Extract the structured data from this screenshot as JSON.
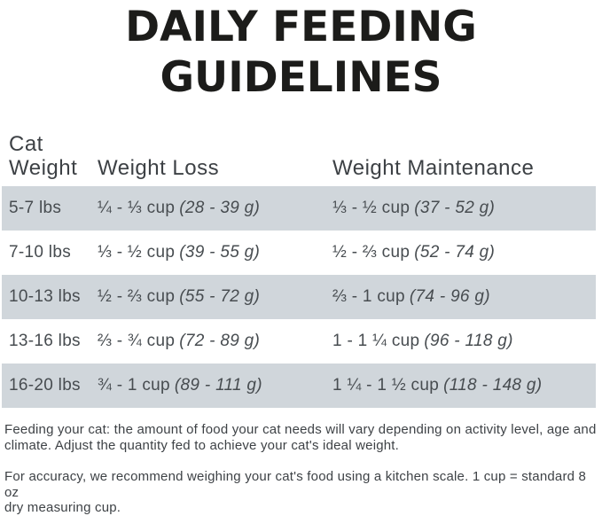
{
  "title": "DAILY FEEDING\nGUIDELINES",
  "colors": {
    "row_shade": "#d0d6db",
    "title_text": "#1c1c1a",
    "body_text": "#474c50"
  },
  "table": {
    "headers": {
      "cat_weight": "Cat\nWeight",
      "weight_loss": "Weight Loss",
      "weight_maintenance": "Weight Maintenance"
    },
    "rows": [
      {
        "weight": "5-7 lbs",
        "loss_cups": "¼ - ⅓ cup",
        "loss_grams": "(28 - 39 g)",
        "maintenance_cups": "⅓ - ½ cup",
        "maintenance_grams": "(37 - 52 g)"
      },
      {
        "weight": "7-10 lbs",
        "loss_cups": "⅓ - ½ cup",
        "loss_grams": "(39 - 55 g)",
        "maintenance_cups": "½ - ⅔ cup",
        "maintenance_grams": "(52 - 74 g)"
      },
      {
        "weight": "10-13 lbs",
        "loss_cups": "½ - ⅔ cup",
        "loss_grams": "(55 - 72 g)",
        "maintenance_cups": "⅔ - 1 cup",
        "maintenance_grams": "(74 - 96 g)"
      },
      {
        "weight": "13-16 lbs",
        "loss_cups": "⅔ - ¾ cup",
        "loss_grams": "(72 - 89 g)",
        "maintenance_cups": "1 - 1 ¼ cup",
        "maintenance_grams": "(96 - 118 g)"
      },
      {
        "weight": "16-20 lbs",
        "loss_cups": "¾ - 1 cup",
        "loss_grams": "(89 - 111 g)",
        "maintenance_cups": "1 ¼ - 1 ½ cup",
        "maintenance_grams": "(118 - 148 g)"
      }
    ]
  },
  "notes": [
    "Feeding your cat: the amount of food your cat needs will vary depending on activity level, age and\nclimate. Adjust the quantity fed to achieve your cat's ideal weight.",
    "For accuracy, we recommend weighing your cat's food using a kitchen scale. 1 cup = standard 8 oz\ndry measuring cup."
  ]
}
